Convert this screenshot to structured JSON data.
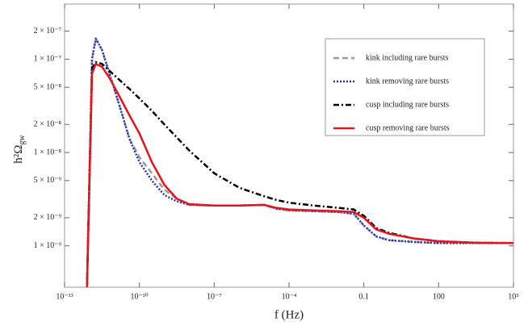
{
  "chart_data": {
    "type": "line",
    "xlabel": "f (Hz)",
    "ylabel": "h²Ω",
    "ylabel_sub": "gw",
    "xscale": "log",
    "yscale": "log",
    "x": [
      7.9e-13,
      1.26e-12,
      1.78e-12,
      3.16e-12,
      6.3e-12,
      1.58e-11,
      4e-11,
      1e-10,
      3.16e-10,
      1e-09,
      3.16e-09,
      1e-08,
      1e-07,
      1e-06,
      1e-05,
      3.16e-05,
      0.0001,
      0.001,
      0.01,
      0.04,
      0.1,
      0.316,
      1,
      10,
      100,
      3160,
      100000
    ],
    "series": [
      {
        "name": "kink including rare bursts",
        "color": "#999999",
        "dash": "7,4",
        "values": [
          3.6e-10,
          1e-07,
          1.66e-07,
          1.26e-07,
          7e-08,
          3.2e-08,
          1.4e-08,
          8.9e-09,
          6e-09,
          4e-09,
          3.2e-09,
          2.75e-09,
          2.7e-09,
          2.7e-09,
          2.75e-09,
          2.5e-09,
          2.4e-09,
          2.35e-09,
          2.3e-09,
          2.2e-09,
          1.65e-09,
          1.26e-09,
          1.15e-09,
          1.1e-09,
          1.07e-09,
          1.07e-09,
          1.07e-09
        ]
      },
      {
        "name": "kink removing rare bursts",
        "color": "#2233cc",
        "dash": "2,2",
        "values": [
          3.6e-10,
          1e-07,
          1.66e-07,
          1.26e-07,
          7e-08,
          3.2e-08,
          1.4e-08,
          7.9e-09,
          5e-09,
          3.5e-09,
          3e-09,
          2.75e-09,
          2.7e-09,
          2.7e-09,
          2.75e-09,
          2.5e-09,
          2.4e-09,
          2.35e-09,
          2.3e-09,
          2.2e-09,
          1.65e-09,
          1.26e-09,
          1.15e-09,
          1.1e-09,
          1.07e-09,
          1.07e-09,
          1.07e-09
        ]
      },
      {
        "name": "cusp including rare bursts",
        "color": "#000000",
        "dash": "7,3,2,3",
        "values": [
          3.6e-10,
          8e-08,
          9.3e-08,
          8.9e-08,
          7.5e-08,
          6e-08,
          4.8e-08,
          3.8e-08,
          2.8e-08,
          2e-08,
          1.45e-08,
          1.05e-08,
          6e-09,
          4.2e-09,
          3.4e-09,
          3.1e-09,
          2.9e-09,
          2.7e-09,
          2.55e-09,
          2.45e-09,
          2.1e-09,
          1.55e-09,
          1.38e-09,
          1.2e-09,
          1.12e-09,
          1.08e-09,
          1.07e-09
        ]
      },
      {
        "name": "cusp removing rare bursts",
        "color": "#e8141a",
        "dash": "none",
        "values": [
          3.6e-10,
          7e-08,
          8.9e-08,
          8.3e-08,
          6.3e-08,
          4e-08,
          2.5e-08,
          1.6e-08,
          7.9e-09,
          4.5e-09,
          3.2e-09,
          2.8e-09,
          2.7e-09,
          2.7e-09,
          2.75e-09,
          2.55e-09,
          2.45e-09,
          2.4e-09,
          2.35e-09,
          2.3e-09,
          2e-09,
          1.5e-09,
          1.35e-09,
          1.2e-09,
          1.12e-09,
          1.08e-09,
          1.07e-09
        ]
      }
    ],
    "xlim": [
      1e-13,
      100000
    ],
    "ylim": [
      3.6e-10,
      3.9e-07
    ],
    "xticks": [
      {
        "value": 1e-13,
        "label": "10⁻¹³"
      },
      {
        "value": 1e-10,
        "label": "10⁻¹⁰"
      },
      {
        "value": 1e-07,
        "label": "10⁻⁷"
      },
      {
        "value": 0.0001,
        "label": "10⁻⁴"
      },
      0.1,
      100,
      {
        "value": 100000,
        "label": "10⁵"
      }
    ],
    "yticks": [
      {
        "value": 1e-09,
        "label": "1 × 10⁻⁹"
      },
      {
        "value": 2e-09,
        "label": "2 × 10⁻⁹"
      },
      {
        "value": 5e-09,
        "label": "5 × 10⁻⁹"
      },
      {
        "value": 1e-08,
        "label": "1 × 10⁻⁸"
      },
      {
        "value": 2e-08,
        "label": "2 × 10⁻⁸"
      },
      {
        "value": 5e-08,
        "label": "5 × 10⁻⁸"
      },
      {
        "value": 1e-07,
        "label": "1 × 10⁻⁷"
      },
      {
        "value": 2e-07,
        "label": "2 × 10⁻⁷"
      }
    ],
    "legend": "top-right",
    "grid": false
  }
}
